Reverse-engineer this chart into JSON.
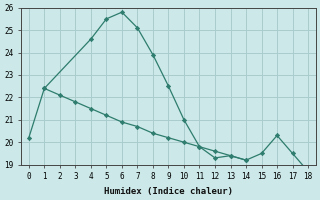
{
  "xlabel": "Humidex (Indice chaleur)",
  "x_upper": [
    0,
    1,
    4,
    5,
    6,
    7,
    8,
    9,
    10,
    11,
    12,
    13,
    14,
    15,
    16,
    17,
    18
  ],
  "y_upper": [
    20.2,
    22.4,
    24.6,
    25.5,
    25.8,
    25.1,
    23.9,
    22.5,
    21.0,
    19.8,
    19.3,
    19.4,
    19.2,
    19.5,
    20.3,
    19.5,
    18.7
  ],
  "x_lower": [
    1,
    2,
    3,
    4,
    5,
    6,
    7,
    8,
    9,
    10,
    11,
    12,
    13,
    14
  ],
  "y_lower": [
    22.4,
    22.1,
    21.8,
    21.5,
    21.2,
    20.9,
    20.7,
    20.4,
    20.2,
    20.0,
    19.8,
    19.6,
    19.4,
    19.2
  ],
  "line_color": "#2e7d6e",
  "bg_color": "#cce8e8",
  "grid_color": "#aacccc",
  "ylim": [
    19,
    26
  ],
  "xlim": [
    -0.5,
    18.5
  ],
  "yticks": [
    19,
    20,
    21,
    22,
    23,
    24,
    25,
    26
  ],
  "xticks": [
    0,
    1,
    2,
    3,
    4,
    5,
    6,
    7,
    8,
    9,
    10,
    11,
    12,
    13,
    14,
    15,
    16,
    17,
    18
  ]
}
